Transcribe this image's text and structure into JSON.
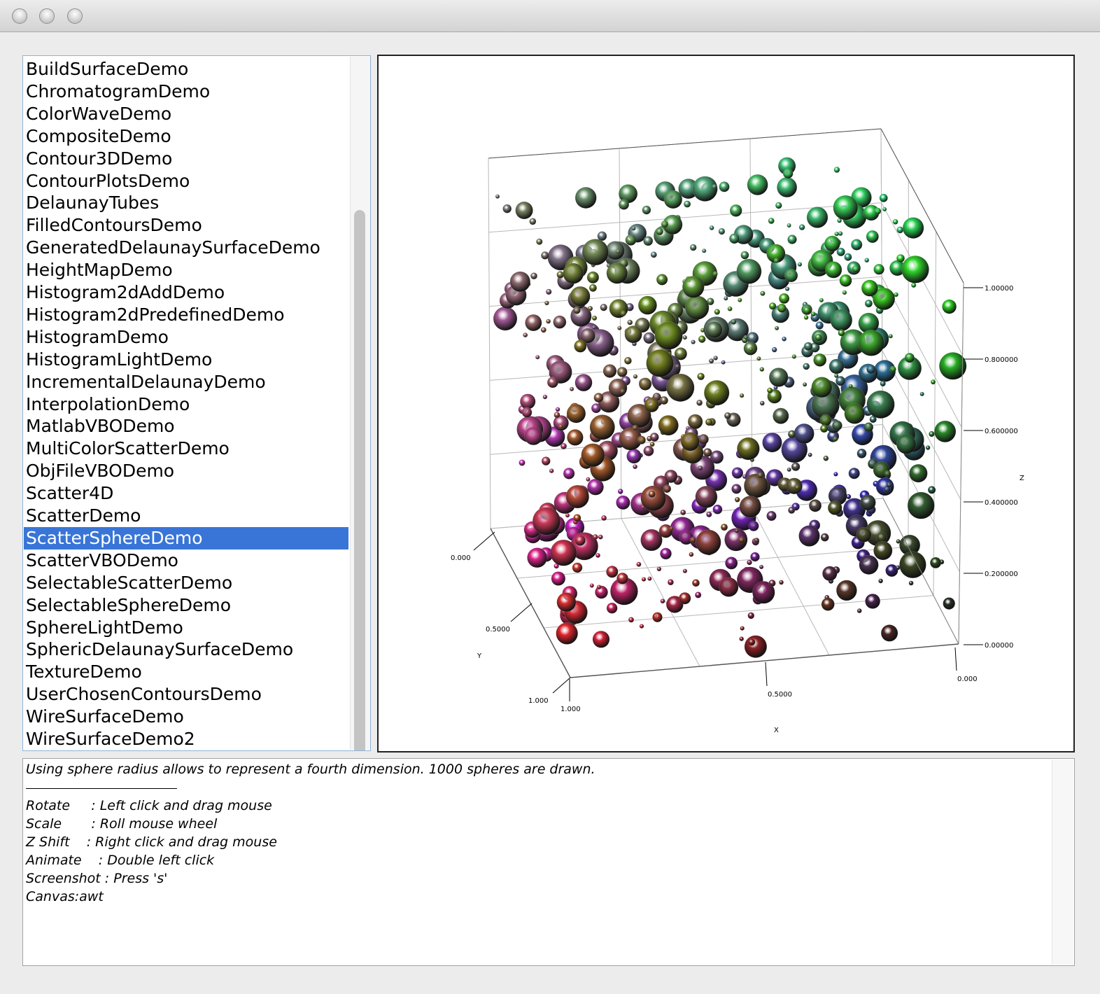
{
  "window": {
    "buttons": [
      "close",
      "minimize",
      "zoom"
    ]
  },
  "demo_list": {
    "items": [
      "BuildSurfaceDemo",
      "ChromatogramDemo",
      "ColorWaveDemo",
      "CompositeDemo",
      "Contour3DDemo",
      "ContourPlotsDemo",
      "DelaunayTubes",
      "FilledContoursDemo",
      "GeneratedDelaunaySurfaceDemo",
      "HeightMapDemo",
      "Histogram2dAddDemo",
      "Histogram2dPredefinedDemo",
      "HistogramDemo",
      "HistogramLightDemo",
      "IncrementalDelaunayDemo",
      "InterpolationDemo",
      "MatlabVBODemo",
      "MultiColorScatterDemo",
      "ObjFileVBODemo",
      "Scatter4D",
      "ScatterDemo",
      "ScatterSphereDemo",
      "ScatterVBODemo",
      "SelectableScatterDemo",
      "SelectableSphereDemo",
      "SphereLightDemo",
      "SphericDelaunaySurfaceDemo",
      "TextureDemo",
      "UserChosenContoursDemo",
      "WireSurfaceDemo",
      "WireSurfaceDemo2"
    ],
    "selected": "ScatterSphereDemo",
    "selected_color": "#3875d7"
  },
  "chart_data": {
    "type": "scatter",
    "subtype": "3d-sphere-scatter",
    "description_count": 1000,
    "axes": {
      "x": {
        "label": "X",
        "ticks": [
          "0.000",
          "0.5000",
          "1.000"
        ]
      },
      "y": {
        "label": "Y",
        "ticks": [
          "0.000",
          "0.5000",
          "1.000"
        ]
      },
      "z": {
        "label": "Z",
        "ticks": [
          "0.00000",
          "0.200000",
          "0.400000",
          "0.600000",
          "0.800000",
          "1.00000"
        ]
      }
    },
    "zlim": [
      0,
      1
    ],
    "grid": true,
    "color_mapping": {
      "x": "#ff2020",
      "y": "#2020ff",
      "z": "#20ff20"
    }
  },
  "description": {
    "lines": [
      "Using sphere radius allows to represent a fourth dimension. 1000 spheres are drawn.",
      "Rotate     : Left click and drag mouse",
      "Scale       : Roll mouse wheel",
      "Z Shift    : Right click and drag mouse",
      "Animate    : Double left click",
      "Screenshot : Press 's'",
      "Canvas:awt"
    ]
  }
}
